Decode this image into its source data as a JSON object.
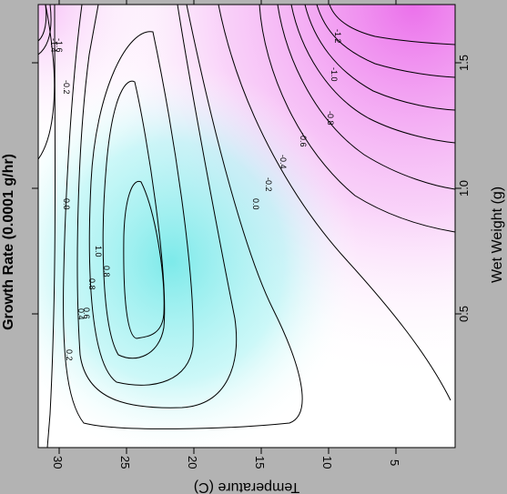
{
  "chart_data": {
    "type": "contour",
    "title": "Growth Rate (0.0001 g/hr)",
    "xlabel": "Temperature (C)",
    "ylabel": "Wet Weight (g)",
    "x_ticks": [
      "5",
      "10",
      "15",
      "20",
      "25",
      "30"
    ],
    "y_ticks": [
      "0.5",
      "1.0",
      "1.5"
    ],
    "xlim": [
      31.5,
      0.8
    ],
    "ylim": [
      0.02,
      1.75
    ],
    "contour_levels": [
      -1.2,
      -1.0,
      -0.8,
      -0.6,
      -0.4,
      -0.2,
      0.0,
      0.2,
      0.4,
      0.6,
      0.8,
      1.0
    ],
    "contour_labels": [
      "-1.2",
      "-1.0",
      "-0.8",
      "-0.6",
      "-0.4",
      "-0.2",
      "0.0",
      "0.2",
      "0.4",
      "0.6",
      "0.8",
      "1.0",
      "-1.4",
      "-1.6"
    ],
    "peak": {
      "temperature": 24,
      "wet_weight": 0.7,
      "growth_rate": 1.1
    },
    "trough": {
      "temperature": 8,
      "wet_weight": 1.75,
      "growth_rate": -1.3
    },
    "colors": {
      "positive": "#66e6e6",
      "negative": "#e64de6",
      "zero": "#ffffff",
      "frame": "#b3b3b3"
    },
    "grid": false,
    "legend": "none"
  }
}
